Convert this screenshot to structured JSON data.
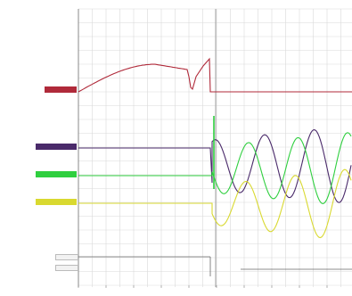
{
  "app": {
    "window_title": ""
  },
  "colors": {
    "background": "#ffffff",
    "grid": "#d9d9d9",
    "cursor": "#a0a0a0",
    "axis": "#888888"
  },
  "channels": [
    {
      "id": "ch1",
      "color": "#b02a3a",
      "tag_label": "",
      "tag_text_dark": false
    },
    {
      "id": "ch2",
      "color": "#4a2a6a",
      "tag_label": "",
      "tag_text_dark": false
    },
    {
      "id": "ch3",
      "color": "#2fcf3f",
      "tag_label": "",
      "tag_text_dark": false
    },
    {
      "id": "ch4",
      "color": "#d9d930",
      "tag_label": "",
      "tag_text_dark": true
    },
    {
      "id": "ch5",
      "color": "#666666",
      "tag_label": "",
      "tag_text_dark": false
    },
    {
      "id": "ch6",
      "color": "#666666",
      "tag_label": "",
      "tag_text_dark": false
    }
  ],
  "time_axis": {
    "tick_labels": [
      "",
      "",
      "",
      "",
      "",
      "",
      "",
      "",
      "",
      ""
    ]
  },
  "status": {
    "bottom_left_text": ""
  }
}
